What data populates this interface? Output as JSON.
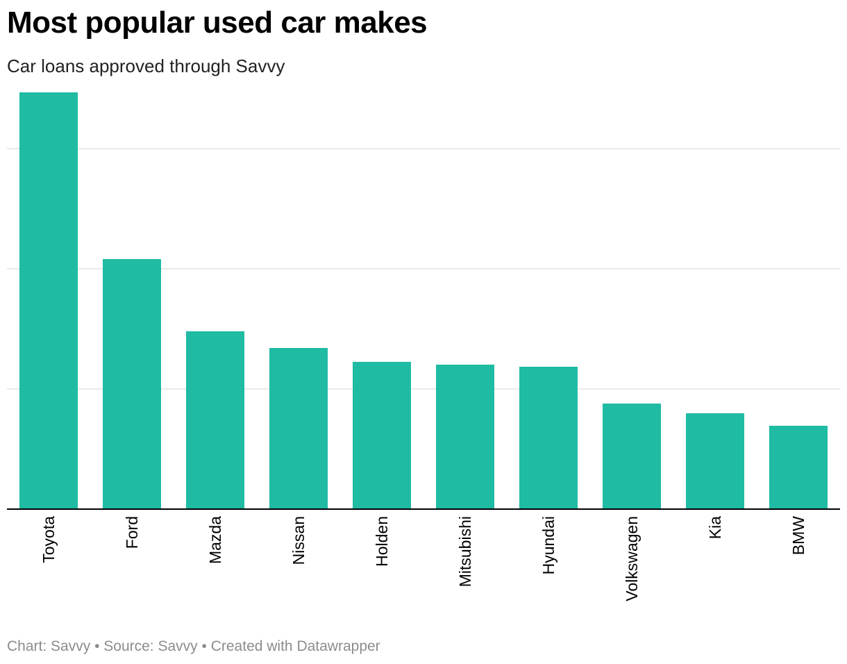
{
  "header": {
    "title": "Most popular used car makes",
    "subtitle": "Car loans approved through Savvy"
  },
  "footer": {
    "credit_chart": "Chart: Savvy",
    "separator": "•",
    "credit_source": "Source: Savvy",
    "credit_tool": "Created with Datawrapper"
  },
  "chart_data": {
    "type": "bar",
    "title": "Most popular used car makes",
    "subtitle": "Car loans approved through Savvy",
    "categories": [
      "Toyota",
      "Ford",
      "Mazda",
      "Nissan",
      "Holden",
      "Mitsubishi",
      "Hyundai",
      "Volkswagen",
      "Kia",
      "BMW"
    ],
    "values": [
      600,
      360,
      256,
      232,
      212,
      208,
      205,
      152,
      138,
      120
    ],
    "ylim": [
      0,
      600
    ],
    "gridlines": [
      0,
      173,
      346,
      519
    ],
    "grid": true,
    "legend": "none",
    "bar_color": "#1fbba3",
    "grid_color": "#e3e3e3",
    "axis_color": "#000000"
  }
}
